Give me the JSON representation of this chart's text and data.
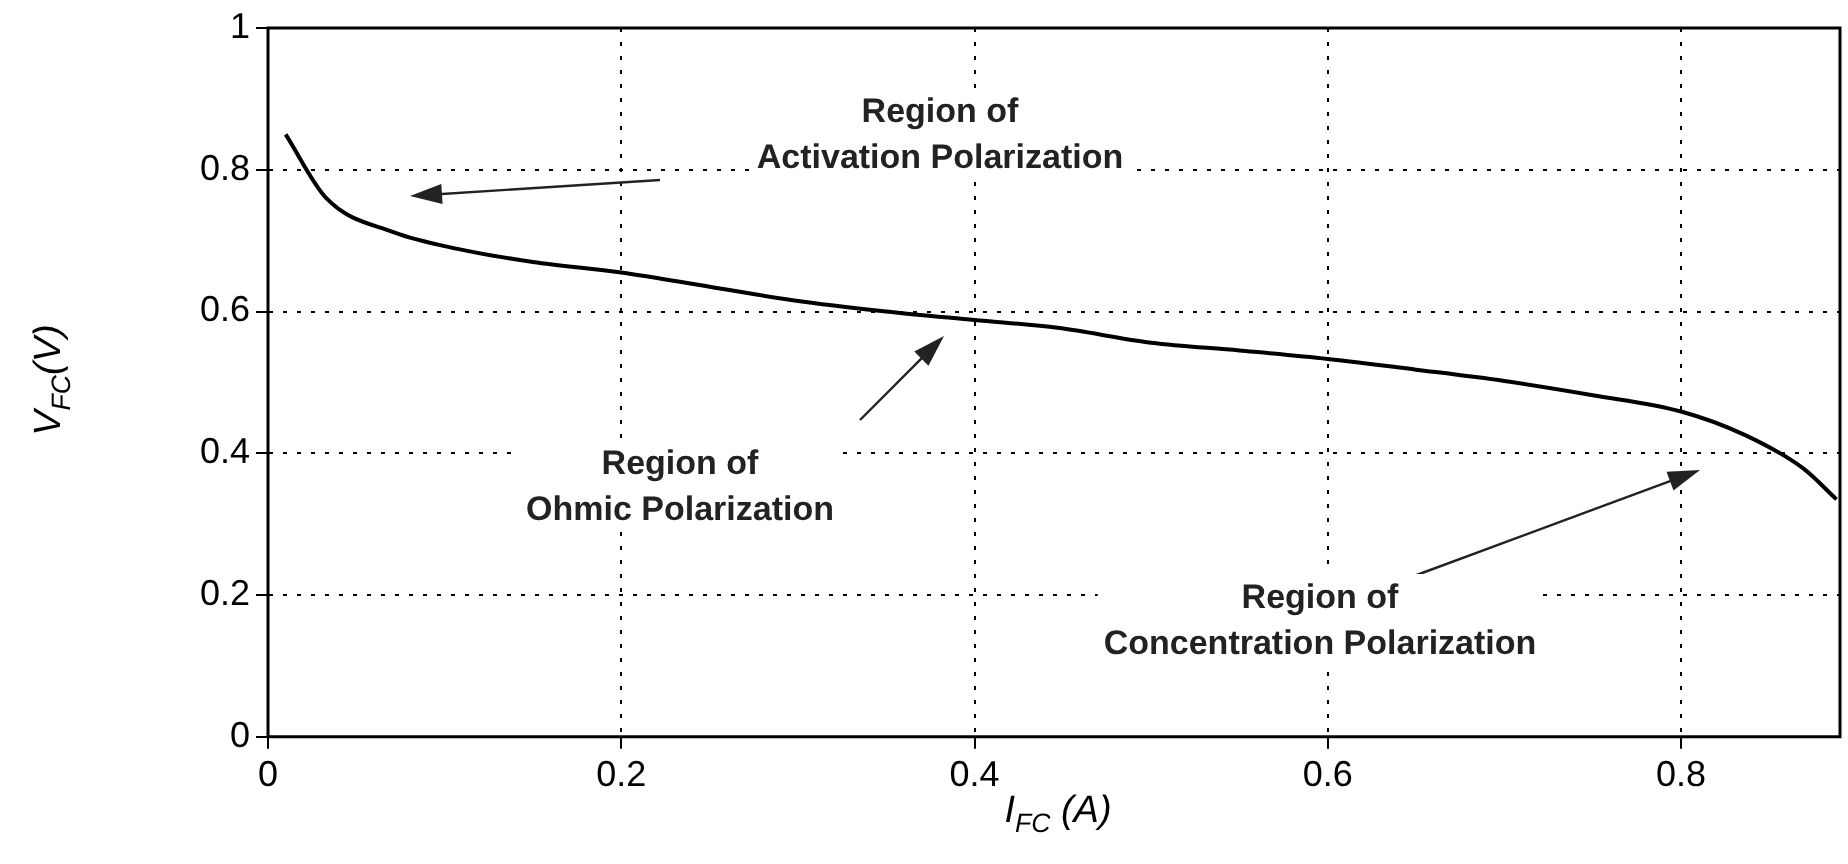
{
  "chart_data": {
    "type": "line",
    "xlabel": "I$_{FC}$ (A)",
    "ylabel": "V$_{FC}$(V)",
    "x": [
      0.01,
      0.033,
      0.071,
      0.108,
      0.15,
      0.2,
      0.25,
      0.297,
      0.35,
      0.4,
      0.447,
      0.5,
      0.55,
      0.6,
      0.65,
      0.7,
      0.75,
      0.8,
      0.836,
      0.869,
      0.888
    ],
    "series": [
      {
        "color": "#000000",
        "values": [
          0.85,
          0.76,
          0.712,
          0.688,
          0.67,
          0.655,
          0.635,
          0.616,
          0.6,
          0.588,
          0.577,
          0.556,
          0.545,
          0.533,
          0.518,
          0.502,
          0.482,
          0.459,
          0.426,
          0.379,
          0.335
        ]
      }
    ],
    "xlim": [
      0,
      0.89
    ],
    "xticks": [
      0,
      0.2,
      0.4,
      0.6,
      0.8
    ],
    "ylim": [
      0,
      1
    ],
    "yticks": [
      0,
      0.2,
      0.4,
      0.6,
      0.8,
      1
    ],
    "grid": true,
    "legend": false,
    "marker": "none",
    "line_style": "solid",
    "annotations": [
      "Region of\nActivation Polarization",
      "Region of\nOhmic Polarization",
      "Region of\nConcentration Polarization"
    ]
  }
}
